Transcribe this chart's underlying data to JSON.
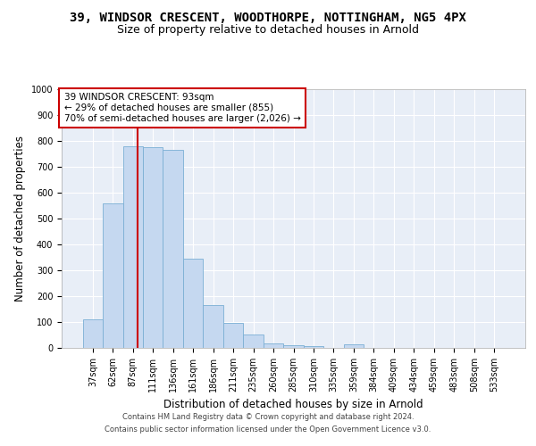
{
  "title_line1": "39, WINDSOR CRESCENT, WOODTHORPE, NOTTINGHAM, NG5 4PX",
  "title_line2": "Size of property relative to detached houses in Arnold",
  "xlabel": "Distribution of detached houses by size in Arnold",
  "ylabel": "Number of detached properties",
  "bar_categories": [
    "37sqm",
    "62sqm",
    "87sqm",
    "111sqm",
    "136sqm",
    "161sqm",
    "186sqm",
    "211sqm",
    "235sqm",
    "260sqm",
    "285sqm",
    "310sqm",
    "335sqm",
    "359sqm",
    "384sqm",
    "409sqm",
    "434sqm",
    "459sqm",
    "483sqm",
    "508sqm",
    "533sqm"
  ],
  "bar_heights": [
    110,
    560,
    780,
    775,
    765,
    345,
    165,
    95,
    52,
    18,
    10,
    8,
    1,
    13,
    1,
    0,
    0,
    0,
    0,
    0,
    0
  ],
  "bar_color": "#c5d8f0",
  "bar_edge_color": "#7bafd4",
  "vline_x": 2.25,
  "vline_color": "#cc0000",
  "annotation_text": "39 WINDSOR CRESCENT: 93sqm\n← 29% of detached houses are smaller (855)\n70% of semi-detached houses are larger (2,026) →",
  "annotation_box_color": "white",
  "annotation_box_edgecolor": "#cc0000",
  "ylim": [
    0,
    1000
  ],
  "yticks": [
    0,
    100,
    200,
    300,
    400,
    500,
    600,
    700,
    800,
    900,
    1000
  ],
  "background_color": "#e8eef7",
  "grid_color": "white",
  "footer_line1": "Contains HM Land Registry data © Crown copyright and database right 2024.",
  "footer_line2": "Contains public sector information licensed under the Open Government Licence v3.0.",
  "title_fontsize": 10,
  "subtitle_fontsize": 9,
  "axis_label_fontsize": 8.5,
  "tick_fontsize": 7,
  "ann_fontsize": 7.5
}
